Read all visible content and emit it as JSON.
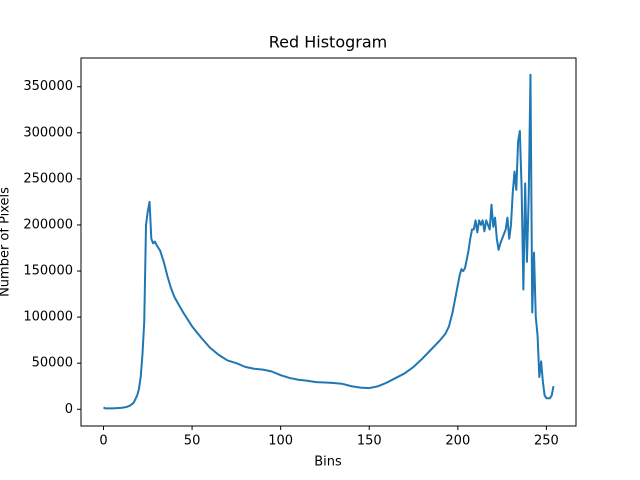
{
  "chart_data": {
    "type": "line",
    "title": "Red Histogram",
    "x_label": "Bins",
    "y_label": "Number of Pixels",
    "x": [
      0,
      1,
      5,
      10,
      13,
      15,
      17,
      19,
      20,
      21,
      22,
      23,
      24,
      25,
      26,
      27,
      28,
      29,
      30,
      32,
      34,
      36,
      38,
      40,
      42,
      45,
      48,
      50,
      55,
      60,
      65,
      70,
      75,
      80,
      85,
      90,
      95,
      100,
      105,
      110,
      115,
      120,
      125,
      130,
      135,
      140,
      145,
      150,
      155,
      160,
      165,
      170,
      175,
      180,
      185,
      190,
      193,
      195,
      197,
      199,
      200,
      201,
      202,
      203,
      204,
      205,
      206,
      207,
      208,
      209,
      210,
      211,
      212,
      213,
      214,
      215,
      216,
      217,
      218,
      219,
      220,
      221,
      222,
      223,
      224,
      225,
      226,
      227,
      228,
      229,
      230,
      231,
      232,
      233,
      234,
      235,
      236,
      237,
      238,
      239,
      240,
      241,
      242,
      243,
      244,
      245,
      246,
      247,
      248,
      249,
      250,
      252,
      253,
      254
    ],
    "series": [
      {
        "name": "Red",
        "color": "#1f77b4",
        "values": [
          2000,
          1000,
          1000,
          1500,
          2500,
          4000,
          7000,
          15000,
          22000,
          35000,
          60000,
          95000,
          200000,
          215000,
          225000,
          185000,
          180000,
          182000,
          178000,
          172000,
          160000,
          145000,
          132000,
          122000,
          115000,
          105000,
          96000,
          90000,
          78000,
          67000,
          59000,
          53000,
          50000,
          46000,
          44000,
          43000,
          41000,
          37000,
          34000,
          32000,
          31000,
          29500,
          29000,
          28500,
          27500,
          25000,
          23500,
          23000,
          25000,
          29000,
          34000,
          39000,
          46000,
          55000,
          65000,
          75000,
          82000,
          90000,
          105000,
          125000,
          135000,
          145000,
          152000,
          150000,
          153000,
          162000,
          172000,
          185000,
          195000,
          195000,
          205000,
          192000,
          205000,
          200000,
          205000,
          193000,
          205000,
          200000,
          195000,
          222000,
          198000,
          208000,
          185000,
          173000,
          180000,
          185000,
          190000,
          195000,
          208000,
          185000,
          200000,
          235000,
          258000,
          238000,
          290000,
          302000,
          240000,
          130000,
          245000,
          160000,
          230000,
          363000,
          105000,
          170000,
          100000,
          80000,
          35000,
          52000,
          30000,
          15000,
          12000,
          12000,
          15000,
          25000
        ]
      }
    ],
    "xlim": [
      -12.7,
      266.7
    ],
    "ylim": [
      -18150,
      381150
    ],
    "xticks": [
      0,
      50,
      100,
      150,
      200,
      250
    ],
    "yticks": [
      0,
      50000,
      100000,
      150000,
      200000,
      250000,
      300000,
      350000
    ]
  }
}
